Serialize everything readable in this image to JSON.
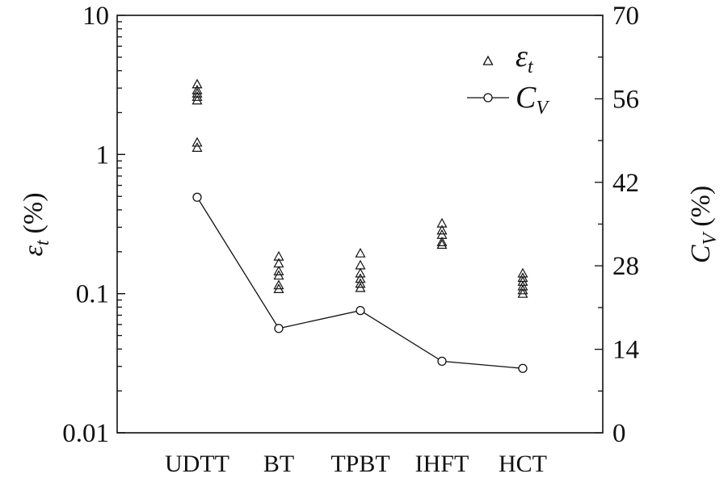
{
  "chart_data": {
    "type": "scatter",
    "categories": [
      "UDTT",
      "BT",
      "TPBT",
      "IHFT",
      "HCT"
    ],
    "left_axis": {
      "label_symbol": "ε",
      "label_sub": "t",
      "label_unit": "(%)",
      "scale": "log",
      "ylim": [
        0.01,
        10
      ],
      "ticks": [
        "0.01",
        "0.1",
        "1",
        "10"
      ]
    },
    "right_axis": {
      "label_symbol": "C",
      "label_sub": "V",
      "label_unit": "(%)",
      "scale": "linear",
      "ylim": [
        0,
        70
      ],
      "ticks": [
        "0",
        "14",
        "28",
        "42",
        "56",
        "70"
      ]
    },
    "series": [
      {
        "name_symbol": "ε",
        "name_sub": "t",
        "axis": "left",
        "marker": "triangle-open",
        "points": [
          [
            3.2,
            2.9,
            2.75,
            2.6,
            2.45,
            1.22,
            1.12
          ],
          [
            0.185,
            0.165,
            0.145,
            0.135,
            0.115,
            0.108
          ],
          [
            0.195,
            0.16,
            0.14,
            0.128,
            0.118,
            0.11
          ],
          [
            0.32,
            0.285,
            0.265,
            0.235,
            0.225
          ],
          [
            0.14,
            0.13,
            0.122,
            0.113,
            0.106,
            0.1
          ]
        ]
      },
      {
        "name_symbol": "C",
        "name_sub": "V",
        "axis": "right",
        "marker": "circle-open-line",
        "values": [
          39.5,
          17.5,
          20.5,
          12.0,
          10.8
        ]
      }
    ],
    "legend_position": "top-right"
  }
}
